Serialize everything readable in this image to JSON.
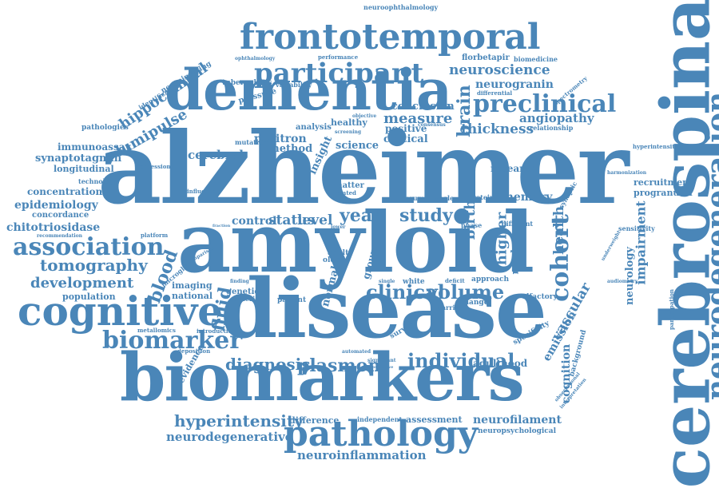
{
  "word_cloud": {
    "color": "#4a86b8",
    "words": [
      {
        "text": "alzheimer",
        "rotation": "horizontal"
      },
      {
        "text": "amyloid",
        "rotation": "horizontal"
      },
      {
        "text": "disease",
        "rotation": "horizontal"
      },
      {
        "text": "biomarkers",
        "rotation": "horizontal"
      },
      {
        "text": "cerebrospinal",
        "rotation": "vertical"
      },
      {
        "text": "dementia",
        "rotation": "horizontal"
      },
      {
        "text": "frontotemporal",
        "rotation": "horizontal"
      },
      {
        "text": "pathology",
        "rotation": "horizontal"
      },
      {
        "text": "cognitive",
        "rotation": "horizontal"
      },
      {
        "text": "neurodegeneration",
        "rotation": "vertical"
      },
      {
        "text": "participant",
        "rotation": "horizontal"
      },
      {
        "text": "preclinical",
        "rotation": "horizontal"
      },
      {
        "text": "association",
        "rotation": "horizontal"
      },
      {
        "text": "cohort",
        "rotation": "vertical"
      },
      {
        "text": "biomarker",
        "rotation": "horizontal"
      },
      {
        "text": "clinical",
        "rotation": "horizontal"
      },
      {
        "text": "volume",
        "rotation": "horizontal"
      },
      {
        "text": "individual",
        "rotation": "horizontal"
      },
      {
        "text": "plasmon",
        "rotation": "horizontal"
      },
      {
        "text": "diagnosis",
        "rotation": "horizontal"
      },
      {
        "text": "tomography",
        "rotation": "horizontal"
      },
      {
        "text": "development",
        "rotation": "horizontal"
      },
      {
        "text": "hyperintensity",
        "rotation": "horizontal"
      },
      {
        "text": "neurodegenerative",
        "rotation": "horizontal"
      },
      {
        "text": "neuroinflammation",
        "rotation": "horizontal"
      },
      {
        "text": "neurofilament",
        "rotation": "horizontal"
      },
      {
        "text": "neuroscience",
        "rotation": "horizontal"
      },
      {
        "text": "neurogranin",
        "rotation": "horizontal"
      },
      {
        "text": "measure",
        "rotation": "horizontal"
      },
      {
        "text": "thickness",
        "rotation": "horizontal"
      },
      {
        "text": "angiopathy",
        "rotation": "horizontal"
      },
      {
        "text": "conclusion",
        "rotation": "horizontal"
      },
      {
        "text": "hippocampal",
        "rotation": "horizontal"
      },
      {
        "text": "lumipulse",
        "rotation": "horizontal"
      },
      {
        "text": "cerebral",
        "rotation": "horizontal"
      },
      {
        "text": "positron",
        "rotation": "horizontal"
      },
      {
        "text": "method",
        "rotation": "horizontal"
      },
      {
        "text": "cortical",
        "rotation": "horizontal"
      },
      {
        "text": "science",
        "rotation": "horizontal"
      },
      {
        "text": "positive",
        "rotation": "horizontal"
      },
      {
        "text": "healthy",
        "rotation": "horizontal"
      },
      {
        "text": "analysis",
        "rotation": "horizontal"
      },
      {
        "text": "level",
        "rotation": "horizontal"
      },
      {
        "text": "status",
        "rotation": "horizontal"
      },
      {
        "text": "control",
        "rotation": "horizontal"
      },
      {
        "text": "year",
        "rotation": "horizontal"
      },
      {
        "text": "study",
        "rotation": "horizontal"
      },
      {
        "text": "brain",
        "rotation": "vertical"
      },
      {
        "text": "blood",
        "rotation": "vertical"
      },
      {
        "text": "fluid",
        "rotation": "vertical"
      },
      {
        "text": "memory",
        "rotation": "horizontal"
      },
      {
        "text": "research",
        "rotation": "horizontal"
      },
      {
        "text": "higher",
        "rotation": "vertical"
      },
      {
        "text": "birth",
        "rotation": "vertical"
      },
      {
        "text": "health",
        "rotation": "vertical"
      },
      {
        "text": "vascular",
        "rotation": "vertical"
      },
      {
        "text": "impairment",
        "rotation": "vertical"
      },
      {
        "text": "emission",
        "rotation": "vertical"
      },
      {
        "text": "cognition",
        "rotation": "vertical"
      },
      {
        "text": "marker",
        "rotation": "vertical"
      },
      {
        "text": "neurology",
        "rotation": "vertical"
      },
      {
        "text": "adulthood",
        "rotation": "horizontal"
      },
      {
        "text": "assessment",
        "rotation": "horizontal"
      },
      {
        "text": "difference",
        "rotation": "horizontal"
      },
      {
        "text": "independent",
        "rotation": "horizontal"
      },
      {
        "text": "neuropsychological",
        "rotation": "horizontal"
      },
      {
        "text": "evidence",
        "rotation": "horizontal"
      },
      {
        "text": "population",
        "rotation": "horizontal"
      },
      {
        "text": "national",
        "rotation": "horizontal"
      },
      {
        "text": "imaging",
        "rotation": "horizontal"
      },
      {
        "text": "epidemiology",
        "rotation": "horizontal"
      },
      {
        "text": "concentration",
        "rotation": "horizontal"
      },
      {
        "text": "chitotriosidase",
        "rotation": "horizontal"
      },
      {
        "text": "concordance",
        "rotation": "horizontal"
      },
      {
        "text": "synaptotagmin",
        "rotation": "horizontal"
      },
      {
        "text": "longitudinal",
        "rotation": "horizontal"
      },
      {
        "text": "immunoassay",
        "rotation": "horizontal"
      },
      {
        "text": "pathologies",
        "rotation": "horizontal"
      },
      {
        "text": "technology",
        "rotation": "horizontal"
      },
      {
        "text": "recommendation",
        "rotation": "horizontal"
      },
      {
        "text": "recruitment",
        "rotation": "horizontal"
      },
      {
        "text": "progranulin",
        "rotation": "horizontal"
      },
      {
        "text": "hyperintensities",
        "rotation": "horizontal"
      },
      {
        "text": "harmonization",
        "rotation": "horizontal"
      },
      {
        "text": "sensitivity",
        "rotation": "horizontal"
      },
      {
        "text": "relationship",
        "rotation": "horizontal"
      },
      {
        "text": "biomedicine",
        "rotation": "horizontal"
      },
      {
        "text": "florbetapir",
        "rotation": "horizontal"
      },
      {
        "text": "differential",
        "rotation": "horizontal"
      },
      {
        "text": "neuroophthalmology",
        "rotation": "horizontal"
      },
      {
        "text": "performance",
        "rotation": "horizontal"
      },
      {
        "text": "ophthalmology",
        "rotation": "horizontal"
      },
      {
        "text": "neuroimaging",
        "rotation": "horizontal"
      },
      {
        "text": "identification",
        "rotation": "horizontal"
      },
      {
        "text": "tuberculosis",
        "rotation": "horizontal"
      },
      {
        "text": "pressure",
        "rotation": "horizontal"
      },
      {
        "text": "variability",
        "rotation": "horizontal"
      },
      {
        "text": "spectrometry",
        "rotation": "horizontal"
      },
      {
        "text": "mutation",
        "rotation": "horizontal"
      },
      {
        "text": "insight",
        "rotation": "vertical"
      },
      {
        "text": "matter",
        "rotation": "horizontal"
      },
      {
        "text": "related",
        "rotation": "horizontal"
      },
      {
        "text": "regression",
        "rotation": "horizontal"
      },
      {
        "text": "influence",
        "rotation": "horizontal"
      },
      {
        "text": "platform",
        "rotation": "horizontal"
      },
      {
        "text": "microglia",
        "rotation": "horizontal"
      },
      {
        "text": "genetic",
        "rotation": "horizontal"
      },
      {
        "text": "criterion",
        "rotation": "horizontal"
      },
      {
        "text": "patient",
        "rotation": "horizontal"
      },
      {
        "text": "metallomics",
        "rotation": "horizontal"
      },
      {
        "text": "introduction",
        "rotation": "horizontal"
      },
      {
        "text": "deposition",
        "rotation": "horizontal"
      },
      {
        "text": "normal",
        "rotation": "vertical"
      },
      {
        "text": "group",
        "rotation": "vertical"
      },
      {
        "text": "older",
        "rotation": "horizontal"
      },
      {
        "text": "adult",
        "rotation": "horizontal"
      },
      {
        "text": "white",
        "rotation": "horizontal"
      },
      {
        "text": "carrier",
        "rotation": "horizontal"
      },
      {
        "text": "change",
        "rotation": "horizontal"
      },
      {
        "text": "approach",
        "rotation": "horizontal"
      },
      {
        "text": "olfactory",
        "rotation": "horizontal"
      },
      {
        "text": "specificity",
        "rotation": "horizontal"
      },
      {
        "text": "background",
        "rotation": "vertical"
      },
      {
        "text": "protein",
        "rotation": "horizontal"
      },
      {
        "text": "synaptic",
        "rotation": "horizontal"
      },
      {
        "text": "different",
        "rotation": "horizontal"
      },
      {
        "text": "phase",
        "rotation": "horizontal"
      },
      {
        "text": "serum",
        "rotation": "horizontal"
      },
      {
        "text": "whole",
        "rotation": "horizontal"
      },
      {
        "text": "result",
        "rotation": "vertical"
      },
      {
        "text": "survey",
        "rotation": "horizontal"
      },
      {
        "text": "screening",
        "rotation": "horizontal"
      },
      {
        "text": "objective",
        "rotation": "horizontal"
      },
      {
        "text": "consensus",
        "rotation": "horizontal"
      },
      {
        "text": "deficit",
        "rotation": "horizontal"
      },
      {
        "text": "participation",
        "rotation": "vertical"
      },
      {
        "text": "underweight",
        "rotation": "vertical"
      },
      {
        "text": "audiometry",
        "rotation": "horizontal"
      },
      {
        "text": "observational",
        "rotation": "vertical"
      },
      {
        "text": "interpretation",
        "rotation": "vertical"
      },
      {
        "text": "fraction",
        "rotation": "horizontal"
      },
      {
        "text": "automated",
        "rotation": "horizontal"
      },
      {
        "text": "significant",
        "rotation": "horizontal"
      },
      {
        "text": "prospective",
        "rotation": "horizontal"
      },
      {
        "text": "finding",
        "rotation": "horizontal"
      },
      {
        "text": "comparison",
        "rotation": "horizontal"
      },
      {
        "text": "single",
        "rotation": "horizontal"
      },
      {
        "text": "score",
        "rotation": "horizontal"
      },
      {
        "text": "lower",
        "rotation": "horizontal"
      }
    ]
  }
}
